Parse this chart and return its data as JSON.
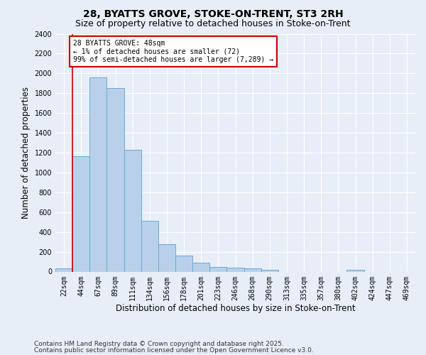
{
  "title1": "28, BYATTS GROVE, STOKE-ON-TRENT, ST3 2RH",
  "title2": "Size of property relative to detached houses in Stoke-on-Trent",
  "xlabel": "Distribution of detached houses by size in Stoke-on-Trent",
  "ylabel": "Number of detached properties",
  "categories": [
    "22sqm",
    "44sqm",
    "67sqm",
    "89sqm",
    "111sqm",
    "134sqm",
    "156sqm",
    "178sqm",
    "201sqm",
    "223sqm",
    "246sqm",
    "268sqm",
    "290sqm",
    "313sqm",
    "335sqm",
    "357sqm",
    "380sqm",
    "402sqm",
    "424sqm",
    "447sqm",
    "469sqm"
  ],
  "values": [
    30,
    1165,
    1960,
    1850,
    1230,
    515,
    275,
    158,
    90,
    50,
    40,
    35,
    20,
    0,
    0,
    0,
    0,
    15,
    0,
    0,
    0
  ],
  "bar_color": "#b8d0ea",
  "bar_edge_color": "#6aaad4",
  "vline_color": "#cc0000",
  "annotation_text": "28 BYATTS GROVE: 48sqm\n← 1% of detached houses are smaller (72)\n99% of semi-detached houses are larger (7,289) →",
  "annotation_box_color": "white",
  "annotation_box_edge": "#cc0000",
  "ylim": [
    0,
    2400
  ],
  "yticks": [
    0,
    200,
    400,
    600,
    800,
    1000,
    1200,
    1400,
    1600,
    1800,
    2000,
    2200,
    2400
  ],
  "footer1": "Contains HM Land Registry data © Crown copyright and database right 2025.",
  "footer2": "Contains public sector information licensed under the Open Government Licence v3.0.",
  "bg_color": "#e8eef8",
  "plot_bg_color": "#e8eef8",
  "grid_color": "white",
  "title_fontsize": 10,
  "subtitle_fontsize": 9,
  "tick_fontsize": 7,
  "label_fontsize": 8.5,
  "footer_fontsize": 6.5
}
